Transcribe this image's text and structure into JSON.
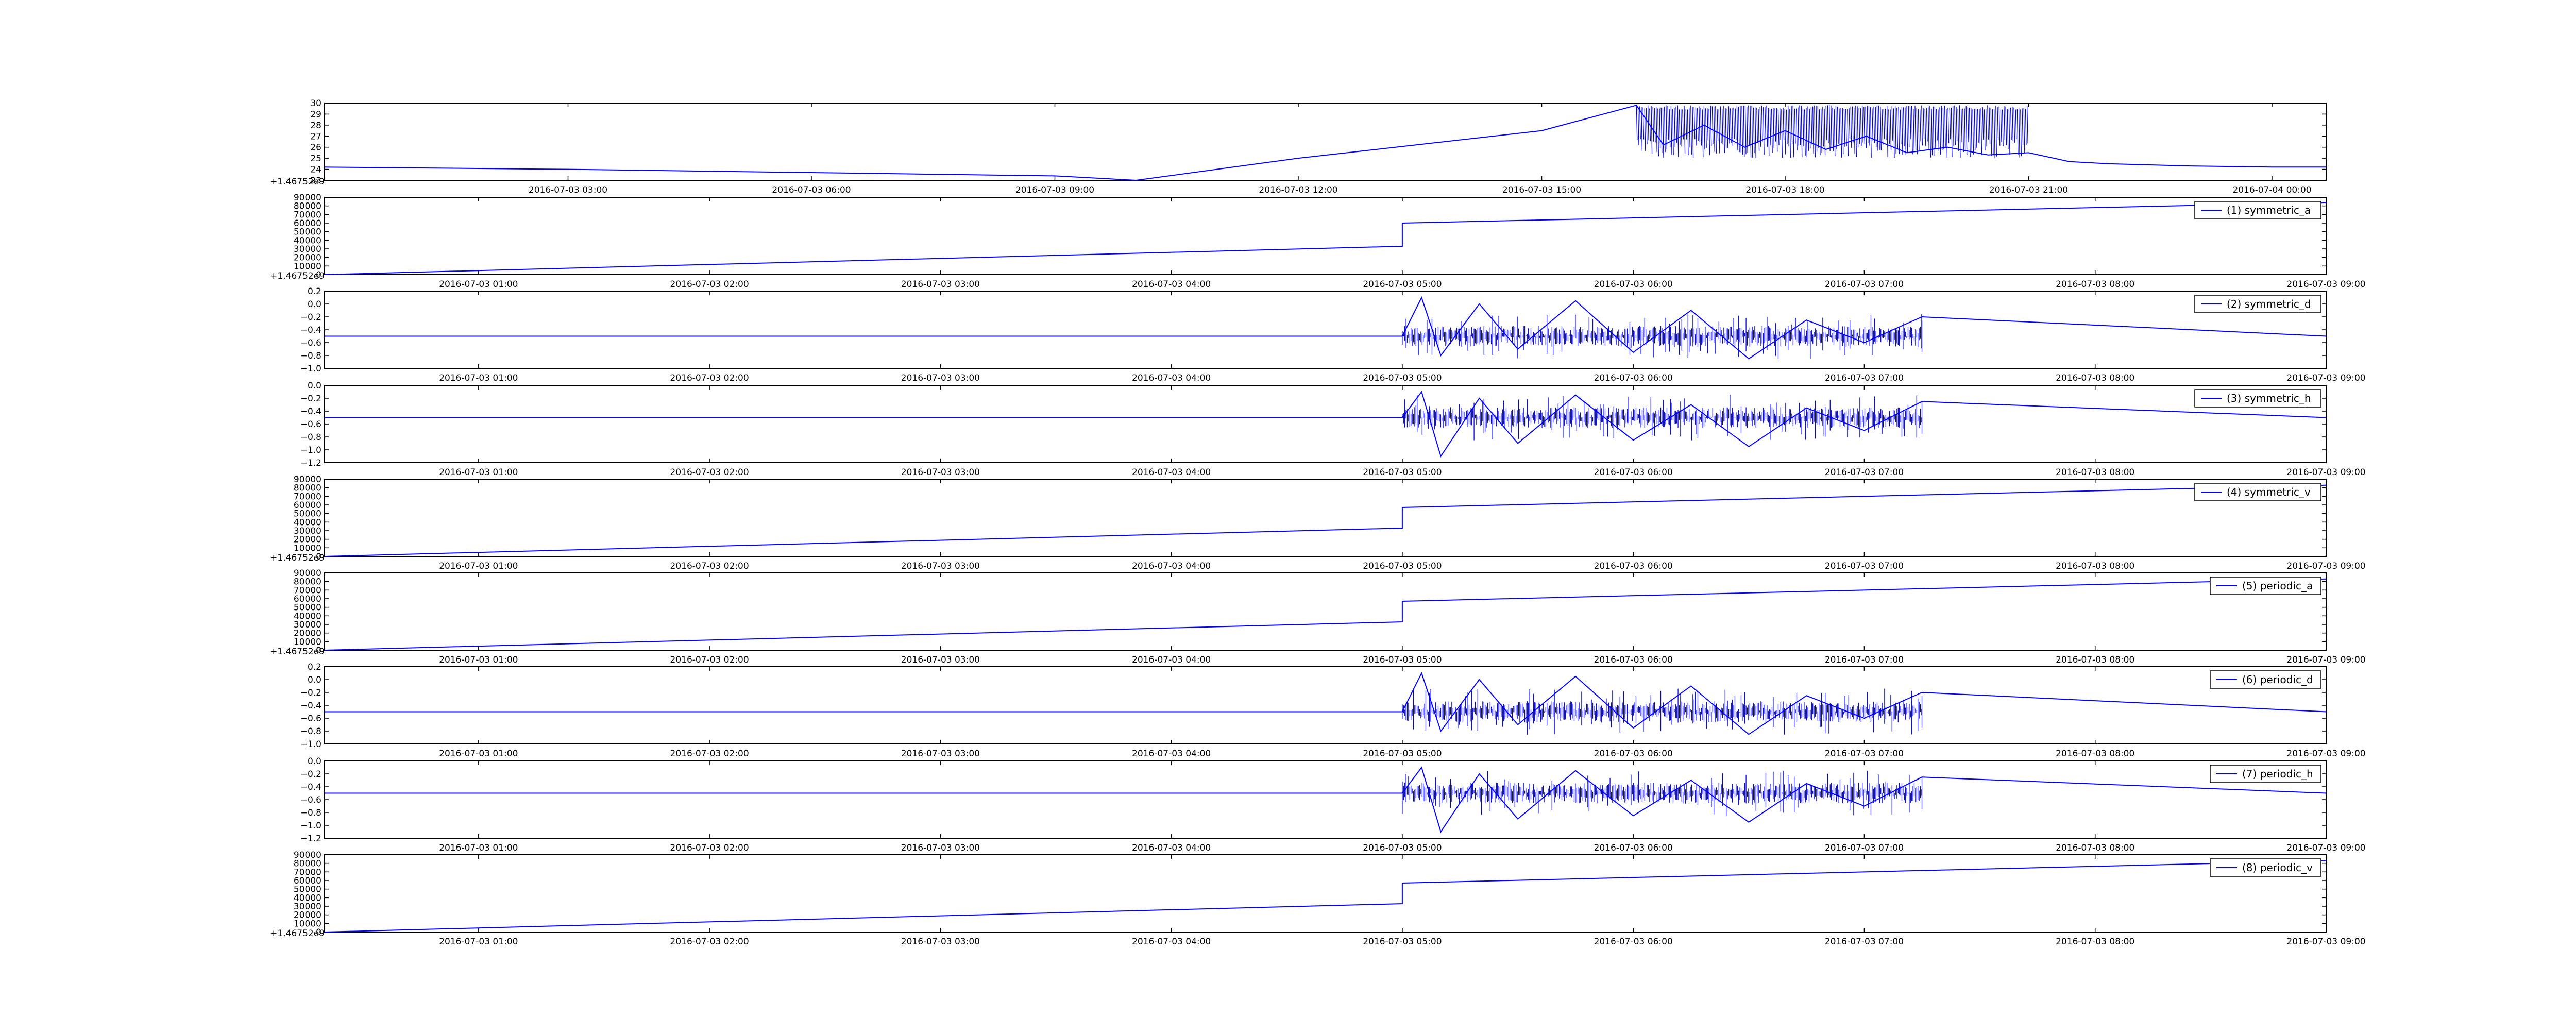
{
  "figure": {
    "background": "#ffffff",
    "line_color": "#0000ff"
  },
  "chart_data": [
    {
      "type": "line",
      "x_ticks": [
        "2016-07-03 03:00",
        "2016-07-03 06:00",
        "2016-07-03 09:00",
        "2016-07-03 12:00",
        "2016-07-03 15:00",
        "2016-07-03 18:00",
        "2016-07-03 21:00",
        "2016-07-04 00:00"
      ],
      "ylim": [
        23,
        30
      ],
      "y_ticks": [
        "23",
        "24",
        "25",
        "26",
        "27",
        "28",
        "29",
        "30"
      ],
      "offset_text": "+1.46752e9",
      "series": [
        {
          "color": "#0000ff",
          "x": [
            "2016-07-03 00:00",
            "2016-07-03 03:00",
            "2016-07-03 06:00",
            "2016-07-03 09:00",
            "2016-07-03 10:00",
            "2016-07-03 12:00",
            "2016-07-03 15:00",
            "2016-07-03 16:10",
            "2016-07-03 16:30",
            "2016-07-03 17:00",
            "2016-07-03 17:30",
            "2016-07-03 18:00",
            "2016-07-03 18:30",
            "2016-07-03 19:00",
            "2016-07-03 19:30",
            "2016-07-03 20:00",
            "2016-07-03 20:30",
            "2016-07-03 21:00",
            "2016-07-03 21:30",
            "2016-07-03 22:00",
            "2016-07-03 23:00",
            "2016-07-04 00:00",
            "2016-07-04 00:40"
          ],
          "y": [
            24.2,
            24.0,
            23.7,
            23.4,
            23.0,
            25.0,
            27.5,
            29.8,
            26.2,
            28.0,
            26.0,
            27.5,
            25.8,
            27.0,
            25.5,
            26.0,
            25.3,
            25.5,
            24.7,
            24.5,
            24.3,
            24.2,
            24.2
          ]
        }
      ]
    },
    {
      "type": "line",
      "x_ticks": [
        "2016-07-03 01:00",
        "2016-07-03 02:00",
        "2016-07-03 03:00",
        "2016-07-03 04:00",
        "2016-07-03 05:00",
        "2016-07-03 06:00",
        "2016-07-03 07:00",
        "2016-07-03 08:00",
        "2016-07-03 09:00"
      ],
      "ylim": [
        0,
        90000
      ],
      "y_ticks": [
        "0",
        "10000",
        "20000",
        "30000",
        "40000",
        "50000",
        "60000",
        "70000",
        "80000",
        "90000"
      ],
      "offset_text": "+1.46752e9",
      "legend": "(1) symmetric_a",
      "series": [
        {
          "name": "(1) symmetric_a",
          "color": "#0000ff",
          "x": [
            "2016-07-03 00:20",
            "2016-07-03 05:00",
            "2016-07-03 05:00",
            "2016-07-03 09:00"
          ],
          "y": [
            0,
            33000,
            60000,
            84000
          ]
        }
      ]
    },
    {
      "type": "line",
      "x_ticks": [
        "2016-07-03 01:00",
        "2016-07-03 02:00",
        "2016-07-03 03:00",
        "2016-07-03 04:00",
        "2016-07-03 05:00",
        "2016-07-03 06:00",
        "2016-07-03 07:00",
        "2016-07-03 08:00",
        "2016-07-03 09:00"
      ],
      "ylim": [
        -1.0,
        0.2
      ],
      "y_ticks": [
        "−1.0",
        "−0.8",
        "−0.6",
        "−0.4",
        "−0.2",
        "0.0",
        "0.2"
      ],
      "legend": "(2) symmetric_d",
      "series": [
        {
          "name": "(2) symmetric_d",
          "color": "#0000ff",
          "x": [
            "2016-07-03 00:20",
            "2016-07-03 05:00",
            "2016-07-03 05:05",
            "2016-07-03 05:10",
            "2016-07-03 05:20",
            "2016-07-03 05:30",
            "2016-07-03 05:45",
            "2016-07-03 06:00",
            "2016-07-03 06:15",
            "2016-07-03 06:30",
            "2016-07-03 06:45",
            "2016-07-03 07:00",
            "2016-07-03 07:15",
            "2016-07-03 09:00"
          ],
          "y": [
            -0.5,
            -0.5,
            0.1,
            -0.8,
            0.0,
            -0.7,
            0.05,
            -0.75,
            -0.1,
            -0.85,
            -0.25,
            -0.6,
            -0.2,
            -0.5
          ]
        }
      ]
    },
    {
      "type": "line",
      "x_ticks": [
        "2016-07-03 01:00",
        "2016-07-03 02:00",
        "2016-07-03 03:00",
        "2016-07-03 04:00",
        "2016-07-03 05:00",
        "2016-07-03 06:00",
        "2016-07-03 07:00",
        "2016-07-03 08:00",
        "2016-07-03 09:00"
      ],
      "ylim": [
        -1.2,
        0.0
      ],
      "y_ticks": [
        "−1.2",
        "−1.0",
        "−0.8",
        "−0.6",
        "−0.4",
        "−0.2",
        "0.0"
      ],
      "legend": "(3) symmetric_h",
      "series": [
        {
          "name": "(3) symmetric_h",
          "color": "#0000ff",
          "x": [
            "2016-07-03 00:20",
            "2016-07-03 05:00",
            "2016-07-03 05:05",
            "2016-07-03 05:10",
            "2016-07-03 05:20",
            "2016-07-03 05:30",
            "2016-07-03 05:45",
            "2016-07-03 06:00",
            "2016-07-03 06:15",
            "2016-07-03 06:30",
            "2016-07-03 06:45",
            "2016-07-03 07:00",
            "2016-07-03 07:15",
            "2016-07-03 09:00"
          ],
          "y": [
            -0.5,
            -0.5,
            -0.1,
            -1.1,
            -0.2,
            -0.9,
            -0.15,
            -0.85,
            -0.3,
            -0.95,
            -0.35,
            -0.7,
            -0.25,
            -0.5
          ]
        }
      ]
    },
    {
      "type": "line",
      "x_ticks": [
        "2016-07-03 01:00",
        "2016-07-03 02:00",
        "2016-07-03 03:00",
        "2016-07-03 04:00",
        "2016-07-03 05:00",
        "2016-07-03 06:00",
        "2016-07-03 07:00",
        "2016-07-03 08:00",
        "2016-07-03 09:00"
      ],
      "ylim": [
        0,
        90000
      ],
      "y_ticks": [
        "0",
        "10000",
        "20000",
        "30000",
        "40000",
        "50000",
        "60000",
        "70000",
        "80000",
        "90000"
      ],
      "offset_text": "+1.46752e9",
      "legend": "(4) symmetric_v",
      "series": [
        {
          "name": "(4) symmetric_v",
          "color": "#0000ff",
          "x": [
            "2016-07-03 00:20",
            "2016-07-03 05:00",
            "2016-07-03 05:00",
            "2016-07-03 09:00"
          ],
          "y": [
            0,
            33000,
            57000,
            83000
          ]
        }
      ]
    },
    {
      "type": "line",
      "x_ticks": [
        "2016-07-03 01:00",
        "2016-07-03 02:00",
        "2016-07-03 03:00",
        "2016-07-03 04:00",
        "2016-07-03 05:00",
        "2016-07-03 06:00",
        "2016-07-03 07:00",
        "2016-07-03 08:00",
        "2016-07-03 09:00"
      ],
      "ylim": [
        0,
        90000
      ],
      "y_ticks": [
        "0",
        "10000",
        "20000",
        "30000",
        "40000",
        "50000",
        "60000",
        "70000",
        "80000",
        "90000"
      ],
      "offset_text": "+1.46752e9",
      "legend": "(5) periodic_a",
      "series": [
        {
          "name": "(5) periodic_a",
          "color": "#0000ff",
          "x": [
            "2016-07-03 00:20",
            "2016-07-03 05:00",
            "2016-07-03 05:00",
            "2016-07-03 09:00"
          ],
          "y": [
            0,
            33000,
            57000,
            83000
          ]
        }
      ]
    },
    {
      "type": "line",
      "x_ticks": [
        "2016-07-03 01:00",
        "2016-07-03 02:00",
        "2016-07-03 03:00",
        "2016-07-03 04:00",
        "2016-07-03 05:00",
        "2016-07-03 06:00",
        "2016-07-03 07:00",
        "2016-07-03 08:00",
        "2016-07-03 09:00"
      ],
      "ylim": [
        -1.0,
        0.2
      ],
      "y_ticks": [
        "−1.0",
        "−0.8",
        "−0.6",
        "−0.4",
        "−0.2",
        "0.0",
        "0.2"
      ],
      "legend": "(6) periodic_d",
      "series": [
        {
          "name": "(6) periodic_d",
          "color": "#0000ff",
          "x": [
            "2016-07-03 00:20",
            "2016-07-03 05:00",
            "2016-07-03 05:05",
            "2016-07-03 05:10",
            "2016-07-03 05:20",
            "2016-07-03 05:30",
            "2016-07-03 05:45",
            "2016-07-03 06:00",
            "2016-07-03 06:15",
            "2016-07-03 06:30",
            "2016-07-03 06:45",
            "2016-07-03 07:00",
            "2016-07-03 07:15",
            "2016-07-03 09:00"
          ],
          "y": [
            -0.5,
            -0.5,
            0.1,
            -0.8,
            0.0,
            -0.7,
            0.05,
            -0.75,
            -0.1,
            -0.85,
            -0.25,
            -0.6,
            -0.2,
            -0.5
          ]
        }
      ]
    },
    {
      "type": "line",
      "x_ticks": [
        "2016-07-03 01:00",
        "2016-07-03 02:00",
        "2016-07-03 03:00",
        "2016-07-03 04:00",
        "2016-07-03 05:00",
        "2016-07-03 06:00",
        "2016-07-03 07:00",
        "2016-07-03 08:00",
        "2016-07-03 09:00"
      ],
      "ylim": [
        -1.2,
        0.0
      ],
      "y_ticks": [
        "−1.2",
        "−1.0",
        "−0.8",
        "−0.6",
        "−0.4",
        "−0.2",
        "0.0"
      ],
      "legend": "(7) periodic_h",
      "series": [
        {
          "name": "(7) periodic_h",
          "color": "#0000ff",
          "x": [
            "2016-07-03 00:20",
            "2016-07-03 05:00",
            "2016-07-03 05:05",
            "2016-07-03 05:10",
            "2016-07-03 05:20",
            "2016-07-03 05:30",
            "2016-07-03 05:45",
            "2016-07-03 06:00",
            "2016-07-03 06:15",
            "2016-07-03 06:30",
            "2016-07-03 06:45",
            "2016-07-03 07:00",
            "2016-07-03 07:15",
            "2016-07-03 09:00"
          ],
          "y": [
            -0.5,
            -0.5,
            -0.1,
            -1.1,
            -0.2,
            -0.9,
            -0.15,
            -0.85,
            -0.3,
            -0.95,
            -0.35,
            -0.7,
            -0.25,
            -0.5
          ]
        }
      ]
    },
    {
      "type": "line",
      "x_ticks": [
        "2016-07-03 01:00",
        "2016-07-03 02:00",
        "2016-07-03 03:00",
        "2016-07-03 04:00",
        "2016-07-03 05:00",
        "2016-07-03 06:00",
        "2016-07-03 07:00",
        "2016-07-03 08:00",
        "2016-07-03 09:00"
      ],
      "ylim": [
        0,
        90000
      ],
      "y_ticks": [
        "0",
        "10000",
        "20000",
        "30000",
        "40000",
        "50000",
        "60000",
        "70000",
        "80000",
        "90000"
      ],
      "offset_text": "+1.46752e9",
      "legend": "(8) periodic_v",
      "series": [
        {
          "name": "(8) periodic_v",
          "color": "#0000ff",
          "x": [
            "2016-07-03 00:20",
            "2016-07-03 05:00",
            "2016-07-03 05:00",
            "2016-07-03 09:00"
          ],
          "y": [
            0,
            33000,
            57000,
            83000
          ]
        }
      ]
    }
  ]
}
